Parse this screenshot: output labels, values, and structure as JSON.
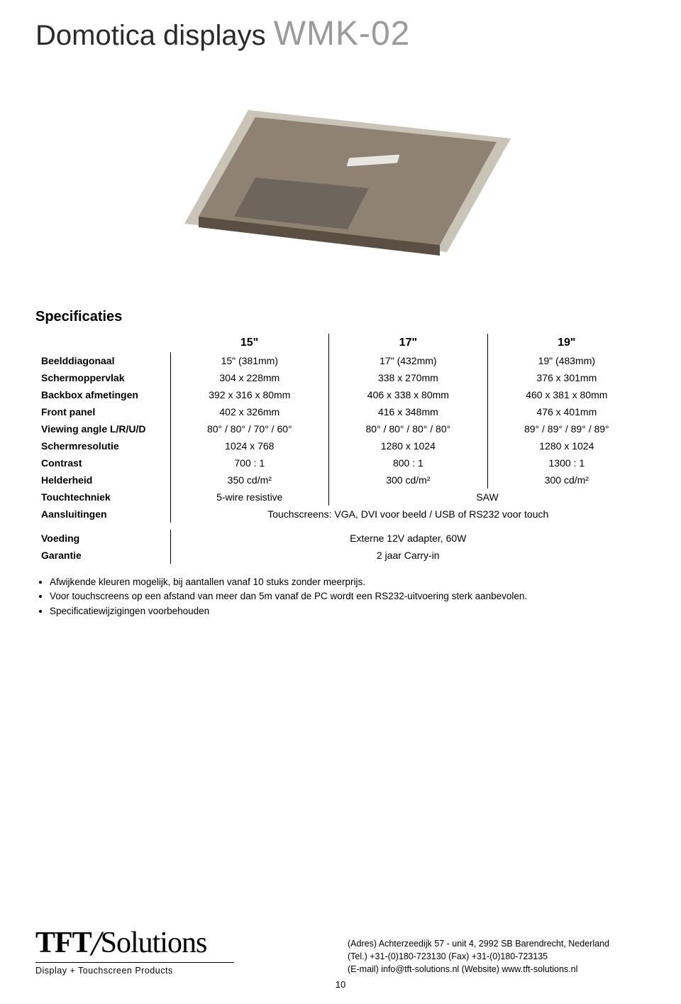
{
  "header": {
    "title_dark": "Domotica displays ",
    "title_grey": "WMK-02"
  },
  "spec_heading": "Specificaties",
  "columns": [
    "15\"",
    "17\"",
    "19\""
  ],
  "rows": [
    {
      "label": "Beelddiagonaal",
      "cells": [
        "15\" (381mm)",
        "17\" (432mm)",
        "19\" (483mm)"
      ]
    },
    {
      "label": "Schermoppervlak",
      "cells": [
        "304 x 228mm",
        "338 x 270mm",
        "376 x 301mm"
      ]
    },
    {
      "label": "Backbox afmetingen",
      "cells": [
        "392 x 316 x 80mm",
        "406 x 338 x 80mm",
        "460 x 381 x 80mm"
      ]
    },
    {
      "label": "Front panel",
      "cells": [
        "402 x 326mm",
        "416 x 348mm",
        "476 x 401mm"
      ]
    },
    {
      "label": "Viewing angle L/R/U/D",
      "cells": [
        "80° / 80° / 70° / 60°",
        "80° / 80° / 80° / 80°",
        "89° / 89° / 89° / 89°"
      ]
    },
    {
      "label": "Schermresolutie",
      "cells": [
        "1024 x 768",
        "1280 x 1024",
        "1280 x 1024"
      ]
    },
    {
      "label": "Contrast",
      "cells": [
        "700 : 1",
        "800 : 1",
        "1300 : 1"
      ]
    },
    {
      "label": "Helderheid",
      "cells": [
        "350 cd/m²",
        "300 cd/m²",
        "300 cd/m²"
      ]
    }
  ],
  "touch_row": {
    "label": "Touchtechniek",
    "col1": "5-wire resistive",
    "col23": "SAW"
  },
  "aansluitingen": {
    "label": "Aansluitingen",
    "value": "Touchscreens: VGA, DVI voor beeld / USB of RS232 voor touch"
  },
  "voeding": {
    "label": "Voeding",
    "value": "Externe 12V adapter, 60W"
  },
  "garantie": {
    "label": "Garantie",
    "value": "2 jaar Carry-in"
  },
  "notes": [
    "Afwijkende kleuren mogelijk, bij aantallen vanaf 10 stuks zonder meerprijs.",
    "Voor touchscreens op een afstand van meer dan 5m vanaf de PC wordt een RS232-uitvoering sterk aanbevolen.",
    "Specificatiewijzigingen voorbehouden"
  ],
  "footer": {
    "brand_tft": "TFT",
    "brand_rest": "Solutions",
    "tagline": "Display + Touchscreen Products",
    "contact_address": "(Adres) Achterzeedijk 57 - unit 4, 2992 SB Barendrecht, Nederland",
    "contact_phone": "(Tel.) +31-(0)180-723130 (Fax) +31-(0)180-723135",
    "contact_email": "(E-mail) info@tft-solutions.nl (Website) www.tft-solutions.nl"
  },
  "page_number": "10",
  "image_colors": {
    "body_fill": "#8f8272",
    "body_stroke": "#5a4f42",
    "panel_fill": "#6e665c",
    "bezel_fill": "#c9c3b8"
  }
}
